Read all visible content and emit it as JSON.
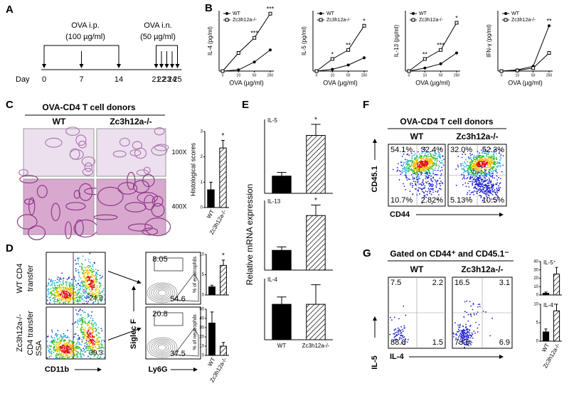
{
  "panel_labels": [
    "A",
    "B",
    "C",
    "D",
    "E",
    "F",
    "G"
  ],
  "a": {
    "ip": "OVA i.p.",
    "ip_dose": "(100 µg/ml)",
    "in": "OVA i.n.",
    "in_dose": "(50 µg/ml)",
    "day_label": "Day",
    "days": [
      0,
      7,
      14,
      21,
      22,
      23,
      24,
      25
    ]
  },
  "b": {
    "xlabel": "OVA (µg/ml)",
    "charts": [
      {
        "ylabel": "IL-4 (pg/ml)",
        "categories": [
          "0",
          "10",
          "50",
          "250"
        ],
        "ylim": [
          0,
          100
        ],
        "series": [
          {
            "name": "WT",
            "values": [
              0,
              2,
              15,
              35
            ]
          },
          {
            "name": "Zc3h12a-/-",
            "values": [
              0,
              30,
              55,
              95
            ]
          }
        ],
        "stars": [
          null,
          null,
          "***",
          "***"
        ]
      },
      {
        "ylabel": "IL-5 (pg/ml)",
        "categories": [
          "0",
          "10",
          "50",
          "250"
        ],
        "ylim": [
          0,
          100
        ],
        "series": [
          {
            "name": "WT",
            "values": [
              0,
              3,
              10,
              22
            ]
          },
          {
            "name": "Zc3h12a-/-",
            "values": [
              0,
              20,
              35,
              75
            ]
          }
        ],
        "stars": [
          null,
          "*",
          "**",
          "*"
        ]
      },
      {
        "ylabel": "IL-13 (pg/ml)",
        "categories": [
          "0",
          "10",
          "50",
          "250"
        ],
        "ylim": [
          0,
          100
        ],
        "series": [
          {
            "name": "WT",
            "values": [
              0,
              5,
              12,
              30
            ]
          },
          {
            "name": "Zc3h12a-/-",
            "values": [
              0,
              20,
              35,
              80
            ]
          }
        ],
        "stars": [
          null,
          "**",
          "***",
          "*"
        ]
      },
      {
        "ylabel": "IFN-γ (pg/ml)",
        "categories": [
          "0",
          "10",
          "50",
          "250"
        ],
        "ylim": [
          0,
          100
        ],
        "series": [
          {
            "name": "WT",
            "values": [
              0,
              2,
              8,
              75
            ]
          },
          {
            "name": "Zc3h12a-/-",
            "values": [
              0,
              1,
              5,
              30
            ]
          }
        ],
        "stars": [
          null,
          null,
          null,
          "**"
        ]
      }
    ]
  },
  "c": {
    "title": "OVA-CD4 T cell donors",
    "columns": [
      "WT",
      "Zc3h12a-/-"
    ],
    "magnifications": [
      "100X",
      "400X"
    ],
    "scores": {
      "ylabel": "Histological scores",
      "ylim": [
        0,
        3
      ],
      "yticks": [
        0,
        1,
        2,
        3
      ],
      "categories": [
        "WT",
        "Zc3h12a-/-"
      ],
      "values": [
        0.7,
        2.35
      ],
      "errors": [
        0.3,
        0.3
      ],
      "star": "*"
    }
  },
  "d": {
    "row_labels": [
      [
        "WT CD4",
        "transfer"
      ],
      [
        "Zc3h12a-/-",
        "CD4 transfer"
      ]
    ],
    "ssc": "SSA",
    "cd11b": "CD11b",
    "cd11b_gates": [
      24.3,
      39.3
    ],
    "siglec": "Siglec F",
    "ly6g": "Ly6G",
    "gates": [
      [
        8.05,
        54.6
      ],
      [
        20.8,
        37.5
      ]
    ],
    "eos": {
      "ylabel": "% of eosinophils",
      "ylim": [
        0,
        10
      ],
      "yticks": [
        0,
        5,
        10
      ],
      "values": [
        2,
        7.3
      ],
      "errors": [
        0.4,
        1.3
      ],
      "star": "*"
    },
    "neu": {
      "ylabel": "% of neutrophils",
      "ylim": [
        0,
        50
      ],
      "yticks": [
        0,
        10,
        20,
        30,
        40,
        50
      ],
      "values": [
        35,
        10
      ],
      "errors": [
        12,
        4
      ],
      "categories": [
        "WT",
        "Zc3h12a-/-"
      ]
    }
  },
  "e": {
    "ylabel": "Relative mRNA expression",
    "categories": [
      "WT",
      "Zc3h12a-/-"
    ],
    "charts": [
      {
        "title": "IL-5",
        "ylim": [
          0,
          6
        ],
        "values": [
          1.4,
          4.7
        ],
        "errors": [
          0.3,
          0.9
        ],
        "star": "*"
      },
      {
        "title": "IL-13",
        "ylim": [
          0,
          6
        ],
        "values": [
          1.7,
          4.7
        ],
        "errors": [
          0.3,
          0.9
        ],
        "star": "*"
      },
      {
        "title": "IL-4",
        "ylim": [
          0,
          5
        ],
        "values": [
          2.9,
          2.9
        ],
        "errors": [
          0.6,
          1.6
        ]
      }
    ]
  },
  "f": {
    "title": "OVA-CD4 T cell donors",
    "columns": [
      "WT",
      "Zc3h12a-/-"
    ],
    "ylabel": "CD45.1",
    "xlabel": "CD44",
    "quadrants": [
      [
        "54.1%",
        "32.4%",
        "10.7%",
        "2.82%"
      ],
      [
        "32.0%",
        "52.3%",
        "5.13%",
        "10.5%"
      ]
    ]
  },
  "g": {
    "title": "Gated on CD44⁺ and CD45.1⁻",
    "columns": [
      "WT",
      "Zc3h12a-/-"
    ],
    "ylabel": "IL-5",
    "xlabel": "IL-4",
    "quadrants": [
      [
        7.5,
        2.2,
        88.8,
        1.5
      ],
      [
        16.5,
        3.1,
        73.6,
        6.9
      ]
    ],
    "il5": {
      "title": "IL-5⁺",
      "ylim": [
        0,
        40
      ],
      "yticks": [
        0,
        10,
        20,
        30,
        40
      ],
      "values": [
        2,
        25
      ],
      "errors": [
        1.5,
        8
      ]
    },
    "il4": {
      "title": "IL-4⁺",
      "ylim": [
        0,
        10
      ],
      "yticks": [
        0,
        5,
        10
      ],
      "values": [
        2.5,
        8.2
      ],
      "errors": [
        0.8,
        1.8
      ],
      "categories": [
        "WT",
        "Zc3h12a-/-"
      ]
    }
  }
}
